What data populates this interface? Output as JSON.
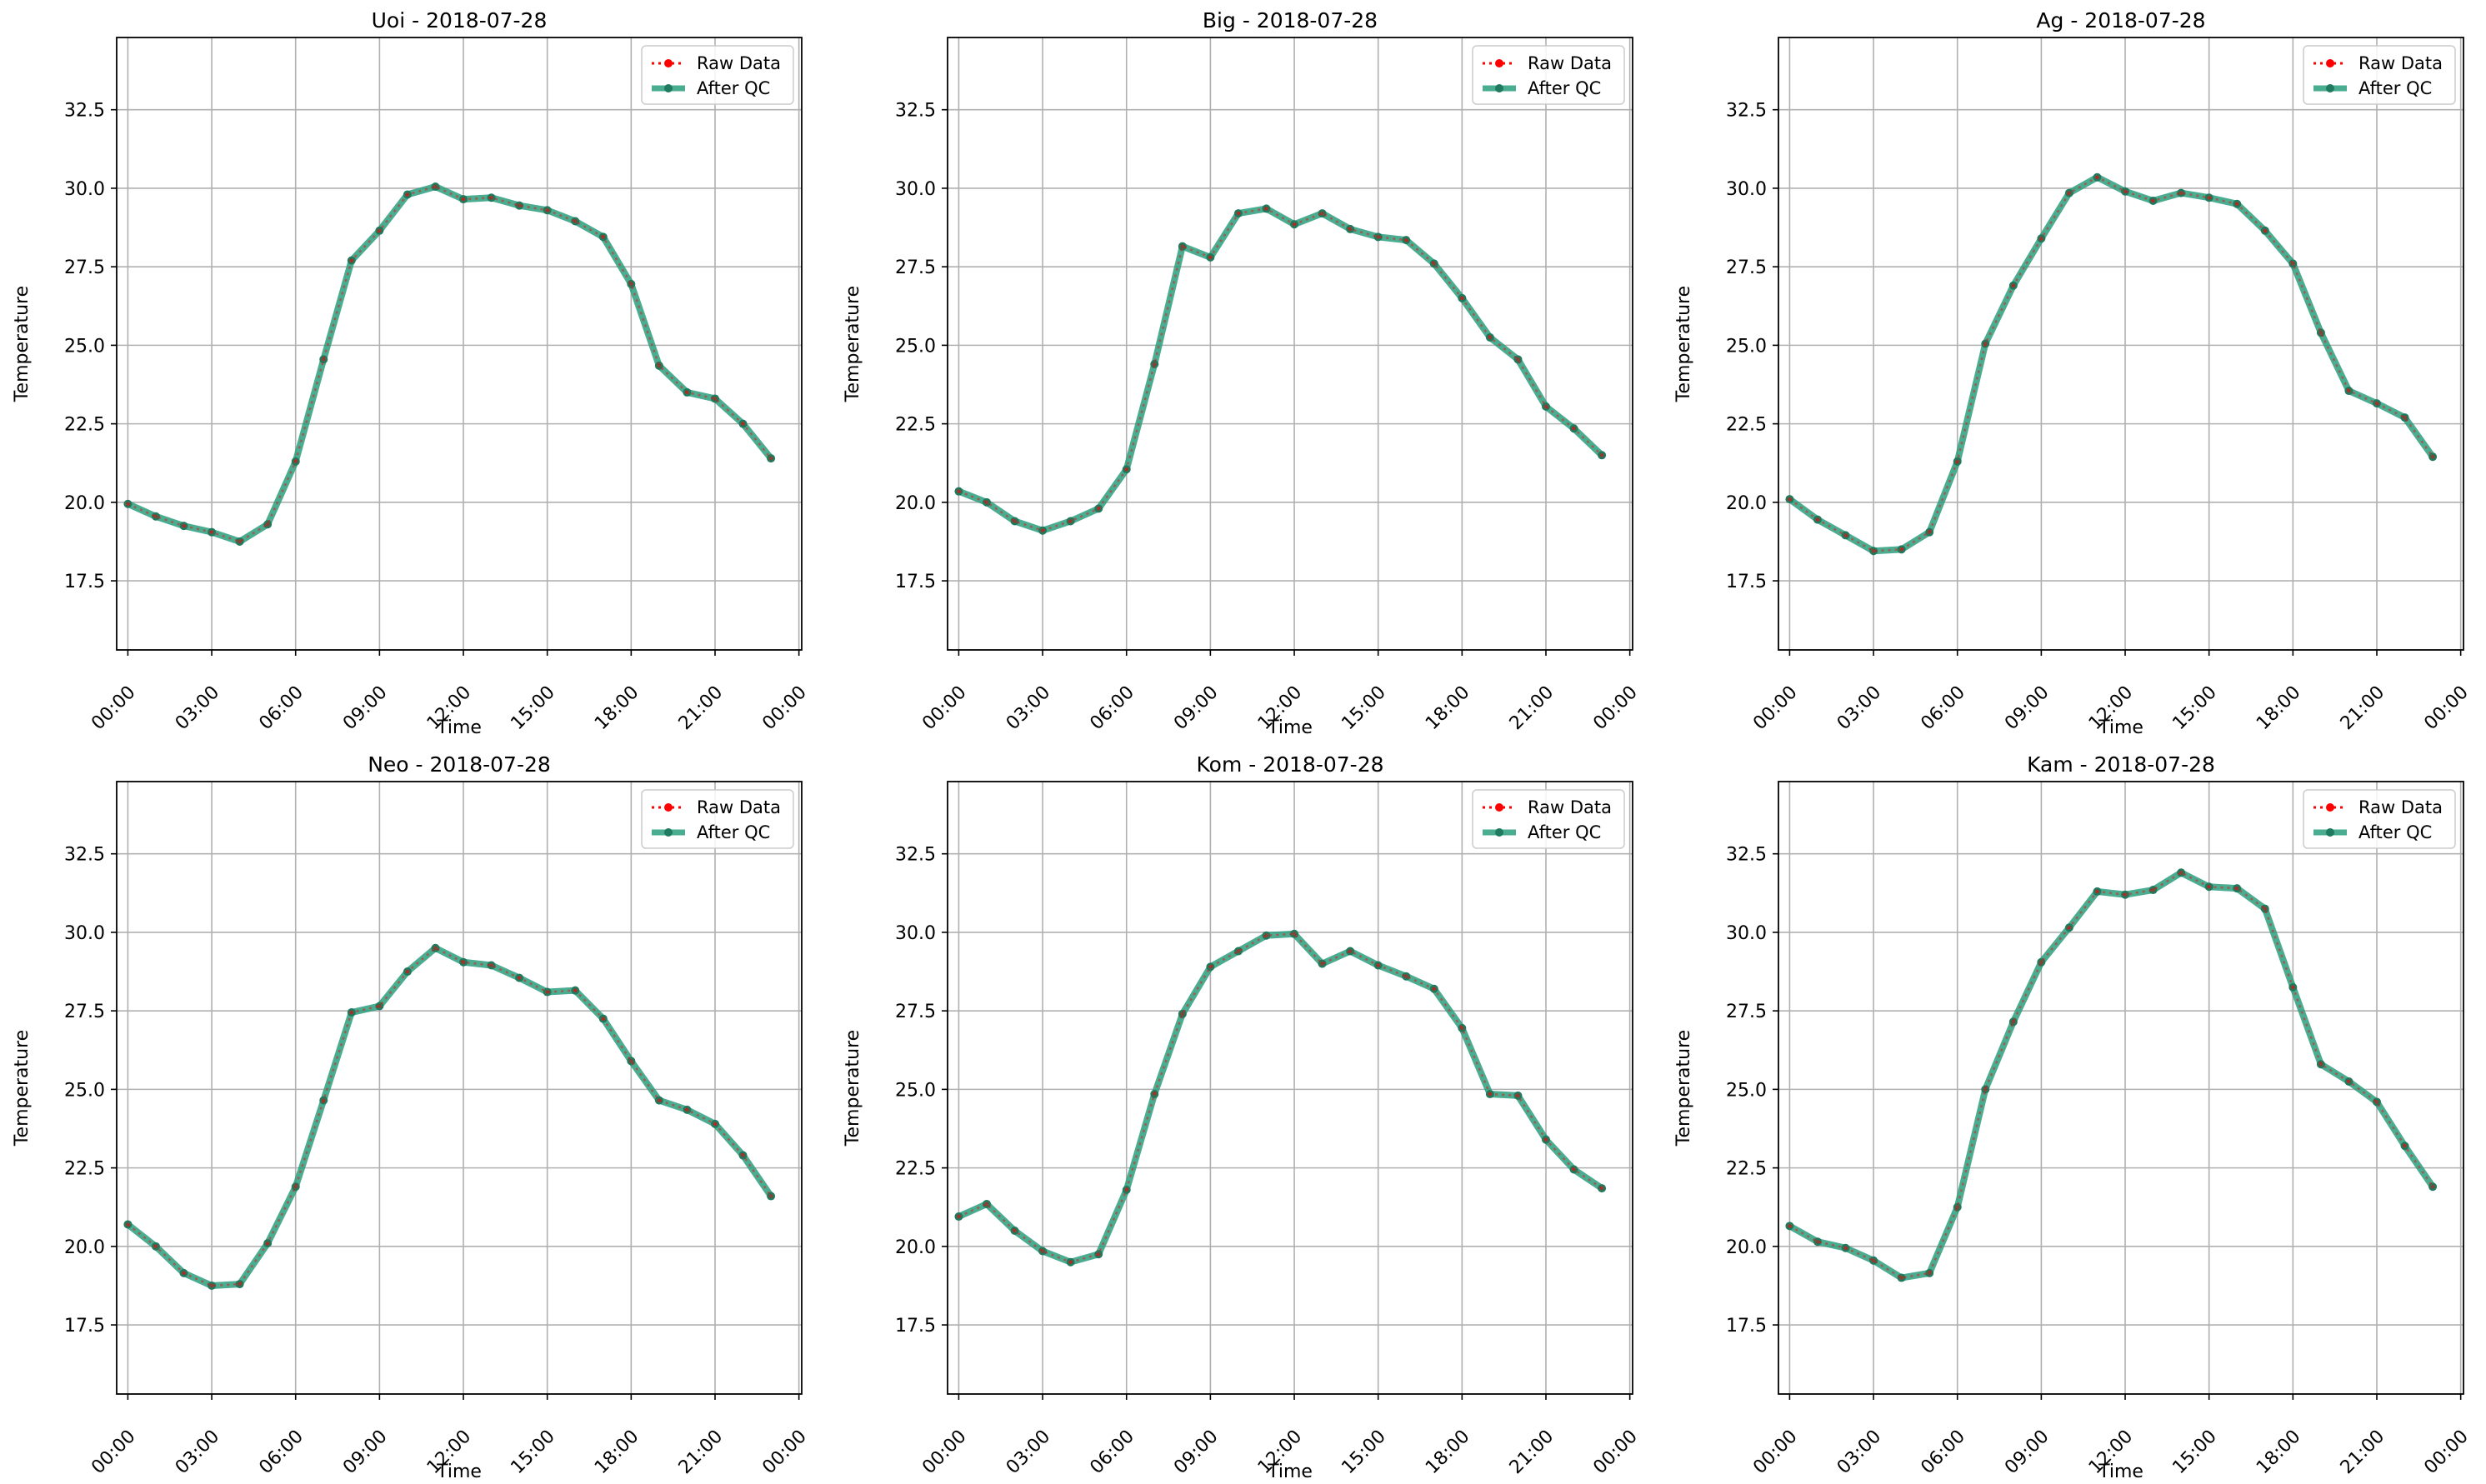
{
  "colors": {
    "raw": "#ff0000",
    "qc": "#2a9d7c",
    "qc_marker": "#1f7a5f",
    "grid": "#b0b0b0",
    "axes": "#000000"
  },
  "chart_data": [
    {
      "type": "line",
      "title": "Uoi - 2018-07-28",
      "xlabel": "Time",
      "ylabel": "Temperature",
      "x_hours": [
        0,
        1,
        2,
        3,
        4,
        5,
        6,
        7,
        8,
        9,
        10,
        11,
        12,
        13,
        14,
        15,
        16,
        17,
        18,
        19,
        20,
        21,
        22,
        23
      ],
      "xticks": [
        "00:00",
        "03:00",
        "06:00",
        "09:00",
        "12:00",
        "15:00",
        "18:00",
        "21:00",
        "00:00"
      ],
      "yticks": [
        "17.5",
        "20.0",
        "22.5",
        "25.0",
        "27.5",
        "30.0",
        "32.5"
      ],
      "ylim": [
        15.3,
        34.8
      ],
      "xlim": [
        -0.4,
        24.1
      ],
      "grid": true,
      "legend_position": "top-right",
      "series": [
        {
          "name": "Raw Data",
          "values": [
            19.95,
            19.55,
            19.25,
            19.05,
            18.75,
            19.3,
            21.3,
            24.55,
            27.7,
            28.65,
            29.8,
            30.05,
            29.65,
            29.7,
            29.45,
            29.3,
            28.95,
            28.45,
            26.95,
            24.35,
            23.5,
            23.3,
            22.5,
            21.4
          ]
        },
        {
          "name": "After QC",
          "values": [
            19.95,
            19.55,
            19.25,
            19.05,
            18.75,
            19.3,
            21.3,
            24.55,
            27.7,
            28.65,
            29.8,
            30.05,
            29.65,
            29.7,
            29.45,
            29.3,
            28.95,
            28.45,
            26.95,
            24.35,
            23.5,
            23.3,
            22.5,
            21.4
          ]
        }
      ]
    },
    {
      "type": "line",
      "title": "Big - 2018-07-28",
      "xlabel": "Time",
      "ylabel": "Temperature",
      "x_hours": [
        0,
        1,
        2,
        3,
        4,
        5,
        6,
        7,
        8,
        9,
        10,
        11,
        12,
        13,
        14,
        15,
        16,
        17,
        18,
        19,
        20,
        21,
        22,
        23
      ],
      "xticks": [
        "00:00",
        "03:00",
        "06:00",
        "09:00",
        "12:00",
        "15:00",
        "18:00",
        "21:00",
        "00:00"
      ],
      "yticks": [
        "17.5",
        "20.0",
        "22.5",
        "25.0",
        "27.5",
        "30.0",
        "32.5"
      ],
      "ylim": [
        15.3,
        34.8
      ],
      "xlim": [
        -0.4,
        24.1
      ],
      "grid": true,
      "legend_position": "top-right",
      "series": [
        {
          "name": "Raw Data",
          "values": [
            20.35,
            20.0,
            19.4,
            19.1,
            19.4,
            19.8,
            21.05,
            24.4,
            28.15,
            27.8,
            29.2,
            29.35,
            28.85,
            29.2,
            28.7,
            28.45,
            28.35,
            27.6,
            26.5,
            25.25,
            24.55,
            23.05,
            22.35,
            21.5
          ]
        },
        {
          "name": "After QC",
          "values": [
            20.35,
            20.0,
            19.4,
            19.1,
            19.4,
            19.8,
            21.05,
            24.4,
            28.15,
            27.8,
            29.2,
            29.35,
            28.85,
            29.2,
            28.7,
            28.45,
            28.35,
            27.6,
            26.5,
            25.25,
            24.55,
            23.05,
            22.35,
            21.5
          ]
        }
      ]
    },
    {
      "type": "line",
      "title": "Ag - 2018-07-28",
      "xlabel": "Time",
      "ylabel": "Temperature",
      "x_hours": [
        0,
        1,
        2,
        3,
        4,
        5,
        6,
        7,
        8,
        9,
        10,
        11,
        12,
        13,
        14,
        15,
        16,
        17,
        18,
        19,
        20,
        21,
        22,
        23
      ],
      "xticks": [
        "00:00",
        "03:00",
        "06:00",
        "09:00",
        "12:00",
        "15:00",
        "18:00",
        "21:00",
        "00:00"
      ],
      "yticks": [
        "17.5",
        "20.0",
        "22.5",
        "25.0",
        "27.5",
        "30.0",
        "32.5"
      ],
      "ylim": [
        15.3,
        34.8
      ],
      "xlim": [
        -0.4,
        24.1
      ],
      "grid": true,
      "legend_position": "top-right",
      "series": [
        {
          "name": "Raw Data",
          "values": [
            20.1,
            19.45,
            18.95,
            18.45,
            18.5,
            19.05,
            21.3,
            25.05,
            26.9,
            28.4,
            29.85,
            30.35,
            29.9,
            29.6,
            29.85,
            29.7,
            29.5,
            28.65,
            27.6,
            25.4,
            23.55,
            23.15,
            22.7,
            21.45
          ]
        },
        {
          "name": "After QC",
          "values": [
            20.1,
            19.45,
            18.95,
            18.45,
            18.5,
            19.05,
            21.3,
            25.05,
            26.9,
            28.4,
            29.85,
            30.35,
            29.9,
            29.6,
            29.85,
            29.7,
            29.5,
            28.65,
            27.6,
            25.4,
            23.55,
            23.15,
            22.7,
            21.45
          ]
        }
      ]
    },
    {
      "type": "line",
      "title": "Neo - 2018-07-28",
      "xlabel": "Time",
      "ylabel": "Temperature",
      "x_hours": [
        0,
        1,
        2,
        3,
        4,
        5,
        6,
        7,
        8,
        9,
        10,
        11,
        12,
        13,
        14,
        15,
        16,
        17,
        18,
        19,
        20,
        21,
        22,
        23
      ],
      "xticks": [
        "00:00",
        "03:00",
        "06:00",
        "09:00",
        "12:00",
        "15:00",
        "18:00",
        "21:00",
        "00:00"
      ],
      "yticks": [
        "17.5",
        "20.0",
        "22.5",
        "25.0",
        "27.5",
        "30.0",
        "32.5"
      ],
      "ylim": [
        15.3,
        34.8
      ],
      "xlim": [
        -0.4,
        24.1
      ],
      "grid": true,
      "legend_position": "top-right",
      "series": [
        {
          "name": "Raw Data",
          "values": [
            20.7,
            20.0,
            19.15,
            18.75,
            18.8,
            20.1,
            21.9,
            24.65,
            27.45,
            27.65,
            28.75,
            29.5,
            29.05,
            28.95,
            28.55,
            28.1,
            28.15,
            27.25,
            25.9,
            24.65,
            24.35,
            23.9,
            22.9,
            21.6
          ]
        },
        {
          "name": "After QC",
          "values": [
            20.7,
            20.0,
            19.15,
            18.75,
            18.8,
            20.1,
            21.9,
            24.65,
            27.45,
            27.65,
            28.75,
            29.5,
            29.05,
            28.95,
            28.55,
            28.1,
            28.15,
            27.25,
            25.9,
            24.65,
            24.35,
            23.9,
            22.9,
            21.6
          ]
        }
      ]
    },
    {
      "type": "line",
      "title": "Kom - 2018-07-28",
      "xlabel": "Time",
      "ylabel": "Temperature",
      "x_hours": [
        0,
        1,
        2,
        3,
        4,
        5,
        6,
        7,
        8,
        9,
        10,
        11,
        12,
        13,
        14,
        15,
        16,
        17,
        18,
        19,
        20,
        21,
        22,
        23
      ],
      "xticks": [
        "00:00",
        "03:00",
        "06:00",
        "09:00",
        "12:00",
        "15:00",
        "18:00",
        "21:00",
        "00:00"
      ],
      "yticks": [
        "17.5",
        "20.0",
        "22.5",
        "25.0",
        "27.5",
        "30.0",
        "32.5"
      ],
      "ylim": [
        15.3,
        34.8
      ],
      "xlim": [
        -0.4,
        24.1
      ],
      "grid": true,
      "legend_position": "top-right",
      "series": [
        {
          "name": "Raw Data",
          "values": [
            20.95,
            21.35,
            20.5,
            19.85,
            19.5,
            19.75,
            21.8,
            24.85,
            27.4,
            28.9,
            29.4,
            29.9,
            29.95,
            29.0,
            29.4,
            28.95,
            28.6,
            28.2,
            26.95,
            24.85,
            24.8,
            23.4,
            22.45,
            21.85
          ]
        },
        {
          "name": "After QC",
          "values": [
            20.95,
            21.35,
            20.5,
            19.85,
            19.5,
            19.75,
            21.8,
            24.85,
            27.4,
            28.9,
            29.4,
            29.9,
            29.95,
            29.0,
            29.4,
            28.95,
            28.6,
            28.2,
            26.95,
            24.85,
            24.8,
            23.4,
            22.45,
            21.85
          ]
        }
      ]
    },
    {
      "type": "line",
      "title": "Kam - 2018-07-28",
      "xlabel": "Time",
      "ylabel": "Temperature",
      "x_hours": [
        0,
        1,
        2,
        3,
        4,
        5,
        6,
        7,
        8,
        9,
        10,
        11,
        12,
        13,
        14,
        15,
        16,
        17,
        18,
        19,
        20,
        21,
        22,
        23
      ],
      "xticks": [
        "00:00",
        "03:00",
        "06:00",
        "09:00",
        "12:00",
        "15:00",
        "18:00",
        "21:00",
        "00:00"
      ],
      "yticks": [
        "17.5",
        "20.0",
        "22.5",
        "25.0",
        "27.5",
        "30.0",
        "32.5"
      ],
      "ylim": [
        15.3,
        34.8
      ],
      "xlim": [
        -0.4,
        24.1
      ],
      "grid": true,
      "legend_position": "top-right",
      "series": [
        {
          "name": "Raw Data",
          "values": [
            20.65,
            20.15,
            19.95,
            19.55,
            19.0,
            19.15,
            21.25,
            25.0,
            27.15,
            29.05,
            30.15,
            31.3,
            31.2,
            31.35,
            31.9,
            31.45,
            31.4,
            30.75,
            28.25,
            25.8,
            25.25,
            24.6,
            23.2,
            21.9
          ]
        },
        {
          "name": "After QC",
          "values": [
            20.65,
            20.15,
            19.95,
            19.55,
            19.0,
            19.15,
            21.25,
            25.0,
            27.15,
            29.05,
            30.15,
            31.3,
            31.2,
            31.35,
            31.9,
            31.45,
            31.4,
            30.75,
            28.25,
            25.8,
            25.25,
            24.6,
            23.2,
            21.9
          ]
        }
      ]
    }
  ]
}
